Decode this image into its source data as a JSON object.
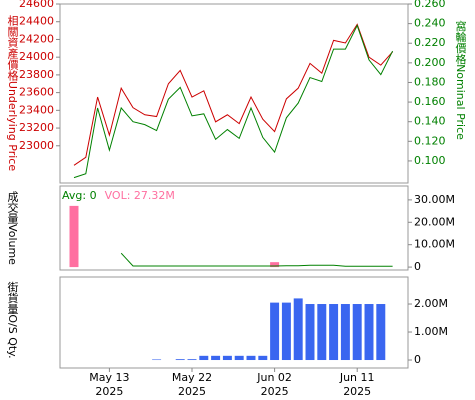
{
  "chart_data": [
    {
      "type": "line",
      "ylabel": "相關資產價格Underlying Price",
      "y2label": "窩輪價格Nominal Price",
      "ylim": [
        22580,
        24600
      ],
      "yticks": [
        23000,
        23200,
        23400,
        23600,
        23800,
        24000,
        24200,
        24400,
        24600
      ],
      "y2lim": [
        0.0775,
        0.26
      ],
      "y2ticks": [
        {
          "value": 0.1,
          "label": "0.100"
        },
        {
          "value": 0.12,
          "label": "0.120"
        },
        {
          "value": 0.14,
          "label": "0.140"
        },
        {
          "value": 0.16,
          "label": "0.160"
        },
        {
          "value": 0.18,
          "label": "0.180"
        },
        {
          "value": 0.2,
          "label": "0.200"
        },
        {
          "value": 0.22,
          "label": "0.220"
        },
        {
          "value": 0.24,
          "label": "0.240"
        },
        {
          "value": 0.26,
          "label": "0.260"
        }
      ],
      "series": [
        {
          "color": "#cc0000",
          "values": [
            22780,
            22870,
            23550,
            23120,
            23650,
            23430,
            23350,
            23330,
            23700,
            23850,
            23550,
            23620,
            23270,
            23350,
            23250,
            23550,
            23300,
            23160,
            23530,
            23650,
            23930,
            23820,
            24190,
            24160,
            24370,
            24000,
            23910,
            24060
          ]
        },
        {
          "color": "#008000",
          "axis": "y2",
          "values": [
            0.083,
            0.087,
            0.154,
            0.111,
            0.154,
            0.14,
            0.137,
            0.131,
            0.163,
            0.175,
            0.146,
            0.148,
            0.122,
            0.132,
            0.123,
            0.154,
            0.124,
            0.109,
            0.144,
            0.159,
            0.185,
            0.181,
            0.214,
            0.214,
            0.238,
            0.203,
            0.188,
            0.212
          ]
        }
      ]
    },
    {
      "type": "bar",
      "ylabel": "成交量Volume",
      "y_axis_side": "right",
      "ylim": [
        -1300000,
        36200000
      ],
      "yticks": [
        0,
        {
          "value": 10000000,
          "label": "10.00M"
        },
        {
          "value": 20000000,
          "label": "20.00M"
        },
        {
          "value": 30000000,
          "label": "30.00M"
        }
      ],
      "series": [
        {
          "name": "Avg: 0",
          "kind": "line",
          "color": "#008000",
          "values": [
            null,
            null,
            null,
            null,
            6200000,
            500000,
            500000,
            500000,
            500000,
            500000,
            500000,
            500000,
            500000,
            500000,
            500000,
            500000,
            500000,
            500000,
            600000,
            600000,
            800000,
            800000,
            800000,
            400000,
            400000,
            400000,
            400000,
            400000
          ]
        },
        {
          "name": "VOL: 27.32M",
          "kind": "bar",
          "color": "#ff6fa0",
          "values": [
            27320000,
            0,
            0,
            0,
            0,
            0,
            0,
            0,
            0,
            0,
            0,
            0,
            0,
            0,
            0,
            0,
            0,
            2200000,
            0,
            0,
            0,
            0,
            0,
            0,
            0,
            0,
            0,
            0
          ]
        }
      ]
    },
    {
      "type": "bar",
      "ylabel": "街貨量O/S Qty.",
      "y_axis_side": "right",
      "color": "#3a66f0",
      "ylim": [
        -285000,
        2965000
      ],
      "yticks": [
        0,
        {
          "value": 1000000,
          "label": "1.00M"
        },
        {
          "value": 2000000,
          "label": "2.00M"
        }
      ],
      "categories": [
        null,
        null,
        null,
        "May 13\n2025",
        null,
        null,
        null,
        null,
        null,
        null,
        "May 22\n2025",
        null,
        null,
        null,
        null,
        null,
        null,
        "Jun 02\n2025",
        null,
        null,
        null,
        null,
        null,
        null,
        "Jun 11\n2025",
        null,
        null,
        null
      ],
      "values": [
        0,
        0,
        0,
        0,
        0,
        0,
        0,
        20000,
        0,
        30000,
        30000,
        150000,
        150000,
        150000,
        150000,
        150000,
        150000,
        2050000,
        2050000,
        2200000,
        2000000,
        2000000,
        2000000,
        2000000,
        2000000,
        2000000,
        2000000,
        0
      ]
    }
  ]
}
